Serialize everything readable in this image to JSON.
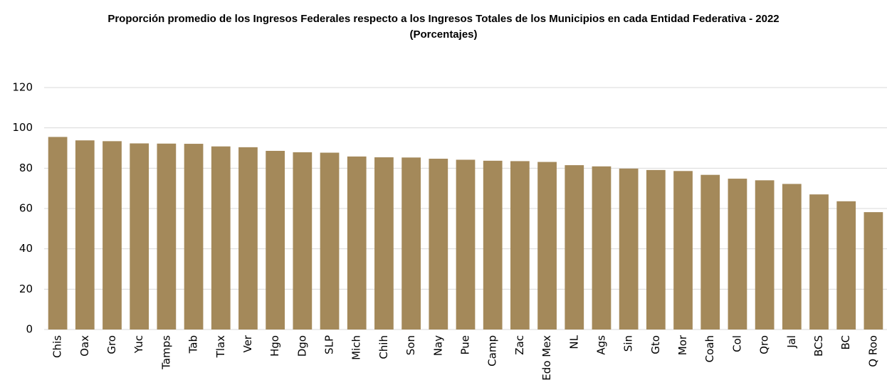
{
  "chart_data": {
    "type": "bar",
    "title": "Proporción promedio de los Ingresos Federales respecto a los Ingresos Totales de los Municipios en cada Entidad Federativa - 2022",
    "subtitle": "(Porcentajes)",
    "categories": [
      "Chis",
      "Oax",
      "Gro",
      "Yuc",
      "Tamps",
      "Tab",
      "Tlax",
      "Ver",
      "Hgo",
      "Dgo",
      "SLP",
      "Mich",
      "Chih",
      "Son",
      "Nay",
      "Pue",
      "Camp",
      "Zac",
      "Edo Mex",
      "NL",
      "Ags",
      "Sin",
      "Gto",
      "Mor",
      "Coah",
      "Col",
      "Qro",
      "Jal",
      "BCS",
      "BC",
      "Q Roo"
    ],
    "values": [
      95.5,
      93.8,
      93.4,
      92.3,
      92.2,
      92.1,
      90.8,
      90.4,
      88.6,
      87.9,
      87.7,
      85.8,
      85.4,
      85.3,
      84.7,
      84.2,
      83.7,
      83.5,
      83.1,
      81.5,
      80.9,
      79.8,
      79.1,
      78.6,
      76.7,
      74.8,
      74.0,
      72.2,
      67.0,
      63.6,
      58.2
    ],
    "color": "#a4895a",
    "ylim": [
      0,
      120
    ],
    "yticks": [
      0,
      20,
      40,
      60,
      80,
      100,
      120
    ],
    "grid": true
  }
}
